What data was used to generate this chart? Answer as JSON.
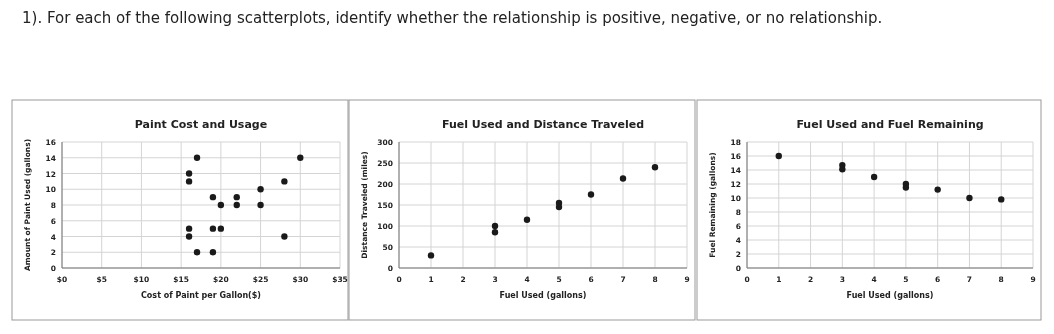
{
  "chart_data": [
    {
      "type": "scatter",
      "title": "Paint Cost and Usage",
      "xlabel": "Cost of Paint per Gallon($)",
      "ylabel": "Amount of Paint Used (gallons)",
      "annotations": [
        "1). For each of the following scatterplots, identify whether the relationship is positive, negative, or no relationship."
      ],
      "x": [
        16,
        16,
        16,
        16,
        17,
        17,
        19,
        19,
        19,
        20,
        20,
        22,
        22,
        25,
        25,
        28,
        28,
        30
      ],
      "series": [
        {
          "color": "#1a1a1a",
          "values": [
            12,
            11,
            5,
            4,
            14,
            2,
            9,
            5,
            2,
            8,
            5,
            9,
            8,
            10,
            8,
            11,
            4,
            14
          ]
        }
      ],
      "xlim": [
        0,
        35
      ],
      "xticks": [
        {
          "value": 0,
          "label": "$0"
        },
        {
          "value": 5,
          "label": "$5"
        },
        {
          "value": 10,
          "label": "$10"
        },
        {
          "value": 15,
          "label": "$15"
        },
        {
          "value": 20,
          "label": "$20"
        },
        {
          "value": 25,
          "label": "$25"
        },
        {
          "value": 30,
          "label": "$30"
        },
        {
          "value": 35,
          "label": "$35"
        }
      ],
      "ylim": [
        0,
        16
      ],
      "yticks": [
        0,
        2,
        4,
        6,
        8,
        10,
        12,
        14,
        16
      ],
      "grid": true,
      "marker": "circle"
    },
    {
      "type": "scatter",
      "title": "Fuel Used and Distance Traveled",
      "xlabel": "Fuel Used (gallons)",
      "ylabel": "Distance Traveled (miles)",
      "x": [
        1,
        3,
        3,
        4,
        5,
        5,
        6,
        7,
        8
      ],
      "series": [
        {
          "color": "#1a1a1a",
          "values": [
            30,
            100,
            85,
            115,
            155,
            145,
            175,
            213,
            240
          ]
        }
      ],
      "xlim": [
        0,
        9
      ],
      "xticks": [
        0,
        1,
        2,
        3,
        4,
        5,
        6,
        7,
        8,
        9
      ],
      "ylim": [
        0,
        300
      ],
      "yticks": [
        0,
        50,
        100,
        150,
        200,
        250,
        300
      ],
      "grid": true,
      "marker": "circle"
    },
    {
      "type": "scatter",
      "title": "Fuel Used and Fuel Remaining",
      "xlabel": "Fuel Used (gallons)",
      "ylabel": "Fuel Remaining (gallons)",
      "x": [
        1,
        3,
        3,
        4,
        5,
        5,
        6,
        7,
        8
      ],
      "series": [
        {
          "color": "#1a1a1a",
          "values": [
            16,
            14.7,
            14.1,
            13,
            12,
            11.5,
            11.2,
            10,
            9.8
          ]
        }
      ],
      "xlim": [
        0,
        9
      ],
      "xticks": [
        0,
        1,
        2,
        3,
        4,
        5,
        6,
        7,
        8,
        9
      ],
      "ylim": [
        0,
        18
      ],
      "yticks": [
        0,
        2,
        4,
        6,
        8,
        10,
        12,
        14,
        16,
        18
      ],
      "grid": true,
      "marker": "circle"
    }
  ]
}
